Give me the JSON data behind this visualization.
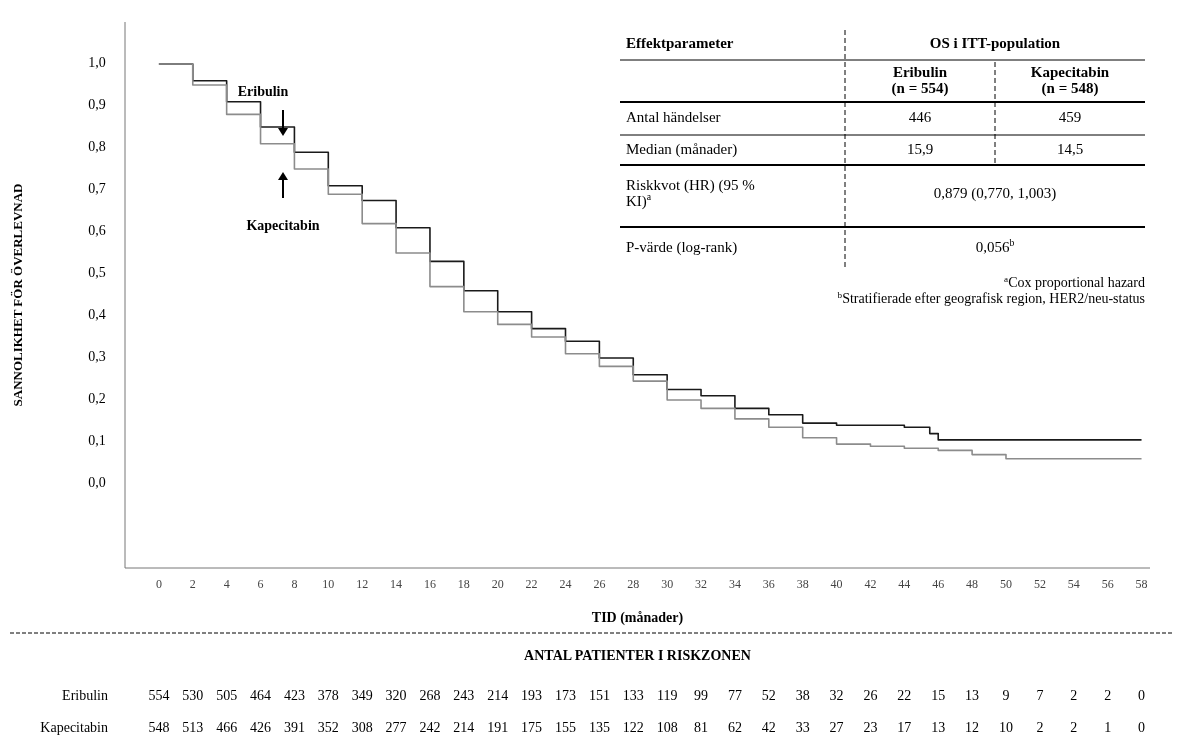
{
  "chart_data": {
    "type": "step",
    "xlabel": "TID (månader)",
    "ylabel": "SANNOLIKHET FÖR ÖVERLEVNAD",
    "x": [
      0,
      2,
      4,
      6,
      8,
      10,
      12,
      14,
      16,
      18,
      20,
      22,
      24,
      26,
      28,
      30,
      32,
      34,
      36,
      38,
      40,
      42,
      44,
      45.5,
      46,
      48,
      50,
      52,
      54,
      56,
      58
    ],
    "series": [
      {
        "name": "Eribulin",
        "color": "#1a1a1a",
        "values": [
          1.0,
          0.96,
          0.91,
          0.85,
          0.79,
          0.71,
          0.675,
          0.61,
          0.53,
          0.46,
          0.41,
          0.37,
          0.34,
          0.3,
          0.26,
          0.225,
          0.21,
          0.18,
          0.165,
          0.145,
          0.14,
          0.14,
          0.135,
          0.12,
          0.105,
          0.105,
          0.105,
          0.105,
          0.105,
          0.105,
          0.105
        ]
      },
      {
        "name": "Kapecitabin",
        "color": "#8c8c8c",
        "values": [
          1.0,
          0.95,
          0.88,
          0.81,
          0.75,
          0.69,
          0.62,
          0.55,
          0.47,
          0.41,
          0.38,
          0.35,
          0.31,
          0.28,
          0.245,
          0.2,
          0.18,
          0.155,
          0.135,
          0.11,
          0.095,
          0.09,
          0.085,
          0.085,
          0.08,
          0.07,
          0.06,
          0.06,
          0.06,
          0.06,
          0.06
        ]
      }
    ],
    "xlim": [
      -2,
      58.5
    ],
    "ylim": [
      -0.2,
      1.1
    ],
    "xticks": [
      0,
      2,
      4,
      6,
      8,
      10,
      12,
      14,
      16,
      18,
      20,
      22,
      24,
      26,
      28,
      30,
      32,
      34,
      36,
      38,
      40,
      42,
      44,
      46,
      48,
      50,
      52,
      54,
      56,
      58
    ],
    "yticks": [
      {
        "value": 0,
        "label": "0,0"
      },
      {
        "value": 0.1,
        "label": "0,1"
      },
      {
        "value": 0.2,
        "label": "0,2"
      },
      {
        "value": 0.3,
        "label": "0,3"
      },
      {
        "value": 0.4,
        "label": "0,4"
      },
      {
        "value": 0.5,
        "label": "0,5"
      },
      {
        "value": 0.6,
        "label": "0,6"
      },
      {
        "value": 0.7,
        "label": "0,7"
      },
      {
        "value": 0.8,
        "label": "0,8"
      },
      {
        "value": 0.9,
        "label": "0,9"
      },
      {
        "value": 1.0,
        "label": "1,0"
      }
    ],
    "grid": false,
    "legend": false,
    "marker": "none",
    "line_style": "solid",
    "annotations": [
      "Effektparameter",
      "OS i ITT-population",
      "Eribulin (n = 554)",
      "Kapecitabin (n = 548)",
      "Antal händelser",
      "446",
      "459",
      "Median (månader)",
      "15,9",
      "14,5",
      "Riskkvot (HR) (95 % KI)$^{a}$",
      "0,879 (0,770, 1,003)",
      "P-värde (log-rank)",
      "0,056$^{b}$",
      "$^{a}$Cox proportional hazard",
      "$^{b}$Stratifierade efter geografisk region, HER2/neu-status",
      "ANTAL PATIENTER I RISKZONEN",
      "Eribulin 554 530 505 464 423 378 349 320 268 243 214 193 173 151 133 119 99 77 52 38 32 26 22 15 13 9 7 2 2 0",
      "Kapecitabin 548 513 466 426 391 352 308 277 242 214 191 175 155 135 122 108 81 62 42 33 27 23 17 13 12 10 2 2 1 0"
    ]
  }
}
